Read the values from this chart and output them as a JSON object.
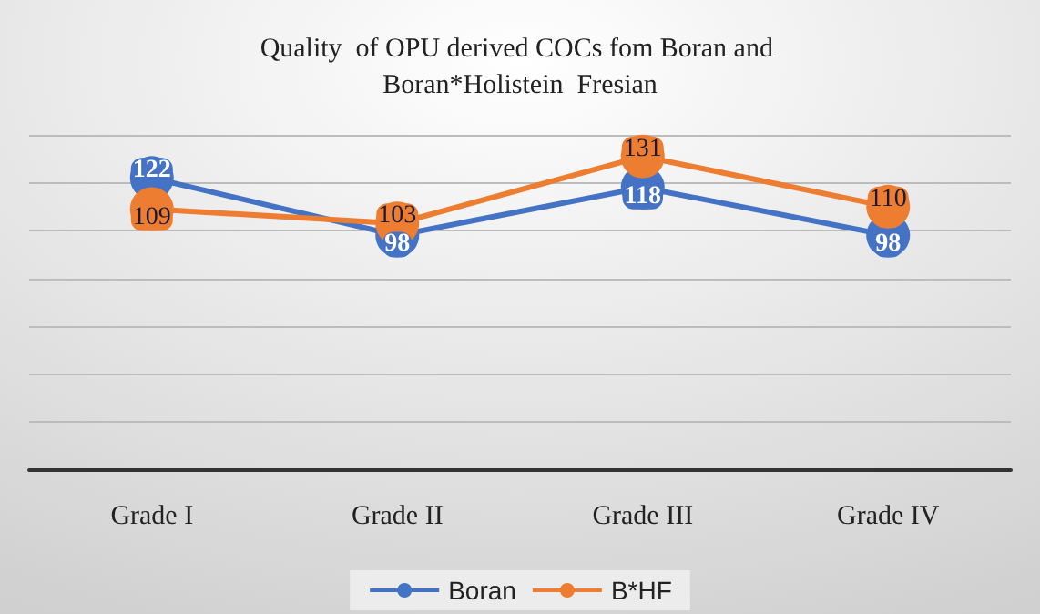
{
  "chart_data": {
    "type": "line",
    "title": "Quality  of OPU derived COCs fom Boran and Boran*Holistein  Fresian",
    "categories": [
      "Grade I",
      "Grade II",
      "Grade III",
      "Grade IV"
    ],
    "series": [
      {
        "name": "Boran",
        "color": "#4472c4",
        "values": [
          122,
          98,
          118,
          98
        ]
      },
      {
        "name": "B*HF",
        "color": "#ed7d31",
        "values": [
          109,
          103,
          131,
          110
        ]
      }
    ],
    "ylim": [
      0,
      140
    ],
    "yticks": [
      {
        "value": 0,
        "label": null
      },
      {
        "value": 20,
        "label": null
      },
      {
        "value": 40,
        "label": null
      },
      {
        "value": 60,
        "label": null
      },
      {
        "value": 80,
        "label": null
      },
      {
        "value": 100,
        "label": null
      },
      {
        "value": 120,
        "label": null
      },
      {
        "value": 140,
        "label": null
      }
    ],
    "tick_labels": "x",
    "grid": "y",
    "legend": "bottom",
    "marker": "circle",
    "line_style": "solid",
    "data_labels": true
  }
}
